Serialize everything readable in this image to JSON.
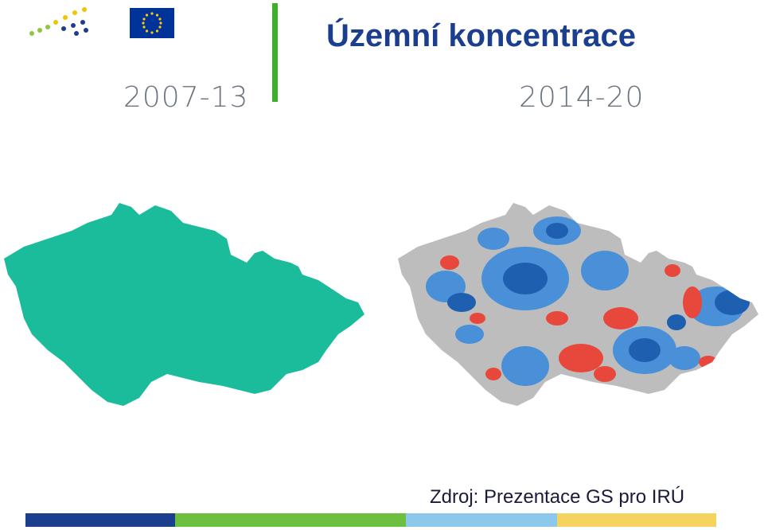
{
  "header": {
    "title": "Územní koncentrace"
  },
  "periods": [
    "2007-13",
    "2014-20"
  ],
  "footer": {
    "source": "Zdroj: Prezentace GS pro IRÚ"
  }
}
